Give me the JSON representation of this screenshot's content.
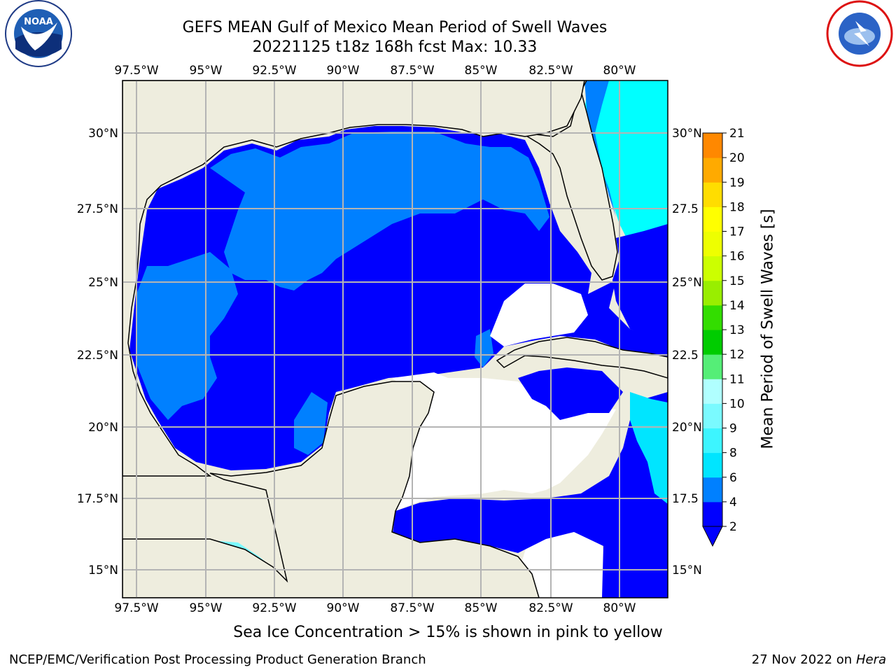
{
  "title_line1": "GEFS MEAN Gulf of Mexico Mean Period of Swell Waves",
  "title_line2": "20221125 t18z 168h fcst   Max: 10.33",
  "logos": {
    "left": {
      "name": "NOAA",
      "ring_text": "NATIONAL OCEANIC AND ATMOSPHERIC ADMINISTRATION · U.S. DEPARTMENT OF COMMERCE"
    },
    "right": {
      "name": "NATIONAL WEATHER SERVICE"
    }
  },
  "lon_labels": [
    "97.5°W",
    "95°W",
    "92.5°W",
    "90°W",
    "87.5°W",
    "85°W",
    "82.5°W",
    "80°W"
  ],
  "lat_labels_left": [
    "30°N",
    "27.5°N",
    "25°N",
    "22.5°N",
    "20°N",
    "17.5°N",
    "15°N"
  ],
  "lat_labels_right": [
    "30°N",
    "27.5",
    "25°N",
    "22.5",
    "20°N",
    "17.5",
    "15°N"
  ],
  "colorbar": {
    "title": "Mean Period of Swell Waves [s]",
    "ticks": [
      "2",
      "4",
      "6",
      "8",
      "9",
      "10",
      "11",
      "12",
      "13",
      "14",
      "15",
      "16",
      "17",
      "18",
      "19",
      "20",
      "21"
    ],
    "colors": [
      "#0000ff",
      "#0080ff",
      "#00e5ff",
      "#3df5ff",
      "#7afaff",
      "#b0ffff",
      "#55ee77",
      "#00cc00",
      "#33dd00",
      "#99ee00",
      "#ccff00",
      "#eeff00",
      "#ffff00",
      "#ffdd00",
      "#ffaa00",
      "#ff8800",
      "#ff6600",
      "#ff3300",
      "#ff0000"
    ],
    "under_color": "#0000ff"
  },
  "colors": {
    "land": "#eeedde",
    "no_data": "#ffffff",
    "grid": "#b4b4b4"
  },
  "caption": "Sea Ice Concentration > 15% is shown in pink to yellow",
  "footer_left": "NCEP/EMC/Verification Post Processing Product Generation Branch",
  "footer_date": "27 Nov 2022 on",
  "footer_machine": "Hera"
}
